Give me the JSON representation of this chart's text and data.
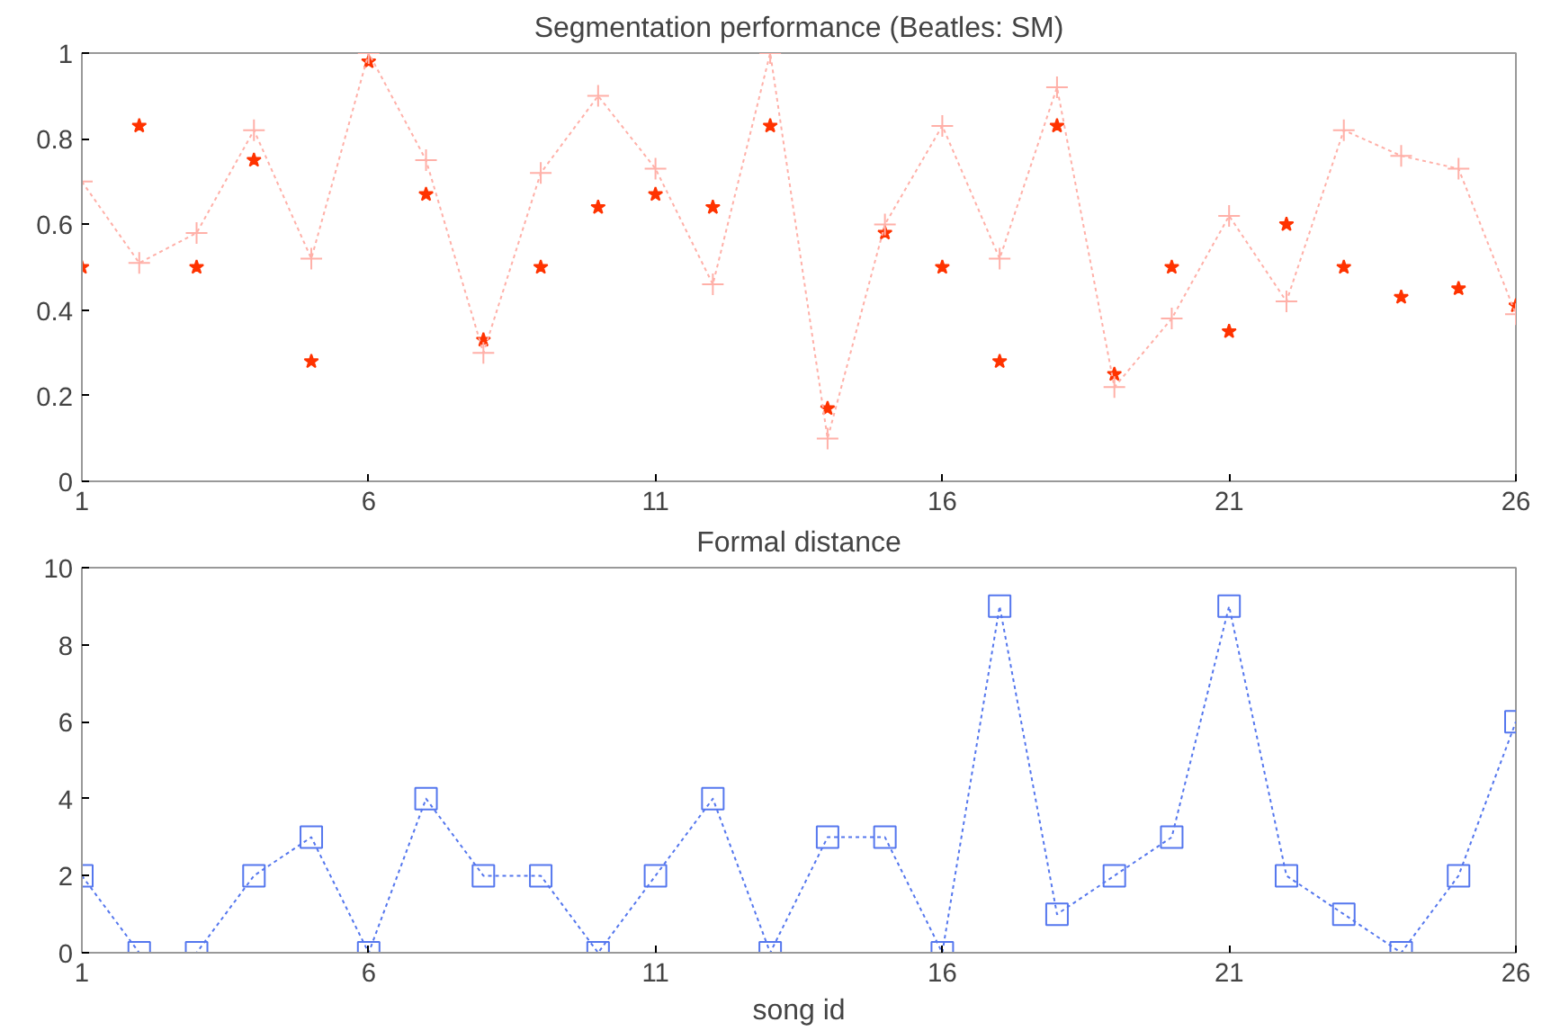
{
  "chart_data": [
    {
      "type": "line",
      "title": "Segmentation performance (Beatles: SM)",
      "x": [
        1,
        2,
        3,
        4,
        5,
        6,
        7,
        8,
        9,
        10,
        11,
        12,
        13,
        14,
        15,
        16,
        17,
        18,
        19,
        20,
        21,
        22,
        23,
        24,
        25,
        26
      ],
      "series": [
        {
          "type": "scatter",
          "color": "#ff3300",
          "marker": "star",
          "values": [
            0.5,
            0.83,
            0.5,
            0.75,
            0.28,
            0.98,
            0.67,
            0.33,
            0.5,
            0.64,
            0.67,
            0.64,
            0.83,
            0.17,
            0.58,
            0.5,
            0.28,
            0.83,
            0.25,
            0.5,
            0.35,
            0.6,
            0.5,
            0.43,
            0.45,
            0.41
          ]
        },
        {
          "color": "#ffb0a8",
          "marker": "cross",
          "line_style": "dotted",
          "values": [
            0.7,
            0.51,
            0.58,
            0.82,
            0.52,
            1.0,
            0.75,
            0.3,
            0.72,
            0.9,
            0.73,
            0.46,
            1.0,
            0.1,
            0.6,
            0.83,
            0.52,
            0.92,
            0.22,
            0.38,
            0.62,
            0.42,
            0.82,
            0.76,
            0.73,
            0.39
          ]
        }
      ],
      "xlim": [
        1,
        26
      ],
      "xticks": [
        1,
        6,
        11,
        16,
        21,
        26
      ],
      "ylim": [
        0,
        1
      ],
      "yticks": [
        0,
        0.2,
        0.4,
        0.6,
        0.8,
        1
      ],
      "grid": false
    },
    {
      "type": "line",
      "title": "Formal distance",
      "xlabel": "song id",
      "x": [
        1,
        2,
        3,
        4,
        5,
        6,
        7,
        8,
        9,
        10,
        11,
        12,
        13,
        14,
        15,
        16,
        17,
        18,
        19,
        20,
        21,
        22,
        23,
        24,
        25,
        26
      ],
      "series": [
        {
          "color": "#5577ee",
          "marker": "square",
          "line_style": "dotted",
          "values": [
            2,
            0,
            0,
            2,
            3,
            0,
            4,
            2,
            2,
            0,
            2,
            4,
            0,
            3,
            3,
            0,
            9,
            1,
            2,
            3,
            9,
            2,
            1,
            0,
            2,
            6
          ]
        }
      ],
      "xlim": [
        1,
        26
      ],
      "xticks": [
        1,
        6,
        11,
        16,
        21,
        26
      ],
      "ylim": [
        0,
        10
      ],
      "yticks": [
        0,
        2,
        4,
        6,
        8,
        10
      ],
      "grid": false
    }
  ]
}
